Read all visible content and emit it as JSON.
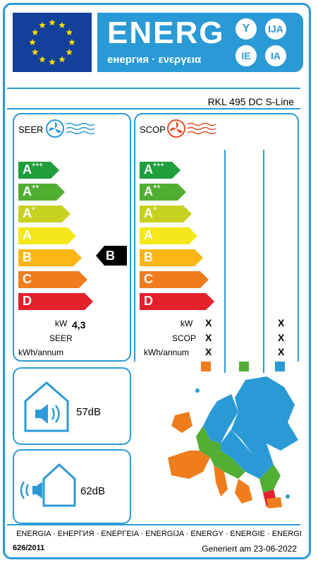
{
  "header": {
    "title": "ENERG",
    "subtitle": "енергия · ενεργεια",
    "lang_codes": [
      "Y",
      "IJA",
      "IE",
      "IA"
    ]
  },
  "model": "RKL 495 DC S-Line",
  "seer_panel": {
    "title": "SEER",
    "classes": [
      {
        "label": "A",
        "sup": "+++",
        "color": "#1f9e3c"
      },
      {
        "label": "A",
        "sup": "++",
        "color": "#52ae32"
      },
      {
        "label": "A",
        "sup": "+",
        "color": "#c6d21f"
      },
      {
        "label": "A",
        "sup": "",
        "color": "#f4e71a"
      },
      {
        "label": "B",
        "sup": "",
        "color": "#fbb514"
      },
      {
        "label": "C",
        "sup": "",
        "color": "#ef7d1d"
      },
      {
        "label": "D",
        "sup": "",
        "color": "#e4202b"
      }
    ],
    "rating": "B",
    "kw_label": "kW",
    "kw_value": "4,3",
    "seer_label": "SEER",
    "kwh_label": "kWh/annum"
  },
  "scop_panel": {
    "title": "SCOP",
    "kw_label": "kW",
    "scop_label": "SCOP",
    "kwh_label": "kWh/annum",
    "x_marks": [
      "X",
      "X",
      "X",
      "X",
      "X",
      "X"
    ],
    "zone_colors": [
      "#ef7d1d",
      "#52ae32",
      "#2a9ad6"
    ]
  },
  "noise_indoor": {
    "value": "57dB"
  },
  "noise_outdoor": {
    "value": "62dB"
  },
  "footer": {
    "languages": "ENERGIA · ЕНЕРГИЯ · ΕΝΕΡΓΕΙΑ · ENERGIJA · ENERGY · ENERGIE · ENERGI",
    "regulation": "626/2011",
    "generated": "Generiert am 23-06-2022"
  }
}
